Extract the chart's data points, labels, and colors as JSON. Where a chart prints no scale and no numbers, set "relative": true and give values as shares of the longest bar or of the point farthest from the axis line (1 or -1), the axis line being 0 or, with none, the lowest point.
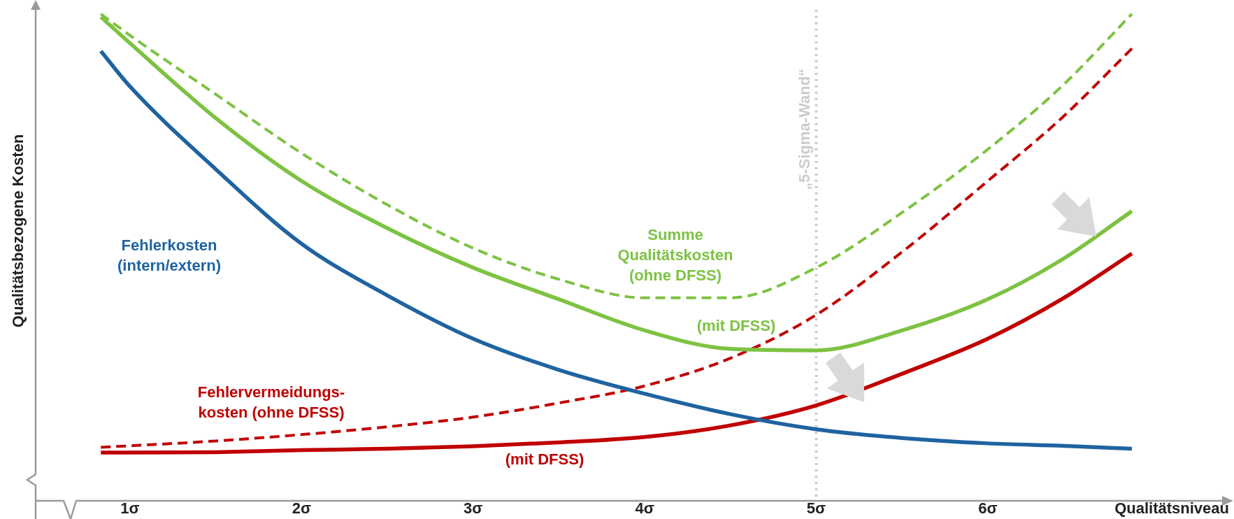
{
  "chart_data": {
    "type": "line",
    "relative": true,
    "xlabel": "Qualitätsniveau",
    "ylabel": "Qualitätsbezogene Kosten",
    "x": [
      0.83,
      1,
      1.5,
      2,
      2.5,
      3,
      3.5,
      4,
      4.5,
      5,
      5.5,
      6,
      6.43,
      6.84
    ],
    "xlim": [
      0.45,
      7.37
    ],
    "xticks": [
      {
        "value": 1,
        "label": "1σ"
      },
      {
        "value": 2,
        "label": "2σ"
      },
      {
        "value": 3,
        "label": "3σ"
      },
      {
        "value": 4,
        "label": "4σ"
      },
      {
        "value": 5,
        "label": "5σ"
      },
      {
        "value": 6,
        "label": "6σ"
      }
    ],
    "series": [
      {
        "color": "#1f63a0",
        "line_style": "solid",
        "values": [
          0.924,
          0.851,
          0.681,
          0.528,
          0.422,
          0.333,
          0.269,
          0.22,
          0.178,
          0.147,
          0.129,
          0.118,
          0.113,
          0.107
        ]
      },
      {
        "color": "#7dc242",
        "line_style": "dashed",
        "values": [
          1,
          0.956,
          0.835,
          0.714,
          0.608,
          0.519,
          0.455,
          0.417,
          0.417,
          0.479,
          0.592,
          0.722,
          0.851,
          1
        ]
      },
      {
        "color": "#7dc242",
        "line_style": "solid",
        "values": [
          0.994,
          0.94,
          0.786,
          0.657,
          0.56,
          0.479,
          0.414,
          0.35,
          0.312,
          0.309,
          0.35,
          0.414,
          0.495,
          0.595
        ]
      },
      {
        "color": "#c00000",
        "line_style": "dashed",
        "values": [
          0.11,
          0.113,
          0.123,
          0.136,
          0.152,
          0.172,
          0.201,
          0.236,
          0.293,
          0.382,
          0.511,
          0.657,
          0.786,
          0.929
        ]
      },
      {
        "color": "#c00000",
        "line_style": "solid",
        "values": [
          0.099,
          0.099,
          0.1,
          0.104,
          0.107,
          0.112,
          0.12,
          0.131,
          0.155,
          0.196,
          0.261,
          0.333,
          0.414,
          0.508
        ]
      }
    ],
    "ref_lines": [
      {
        "axis": "x",
        "value": 5,
        "label": "„5-Sigma-Wand“",
        "color": "#cccccc",
        "line_style": "dotted"
      }
    ],
    "annotations": [
      "Fehlerkosten\n(intern/extern)",
      "Summe\nQualitätskosten\n(ohne DFSS)",
      "(mit DFSS)",
      "Fehlervermeidungs-\nkosten (ohne DFSS)",
      "(mit DFSS)"
    ]
  }
}
